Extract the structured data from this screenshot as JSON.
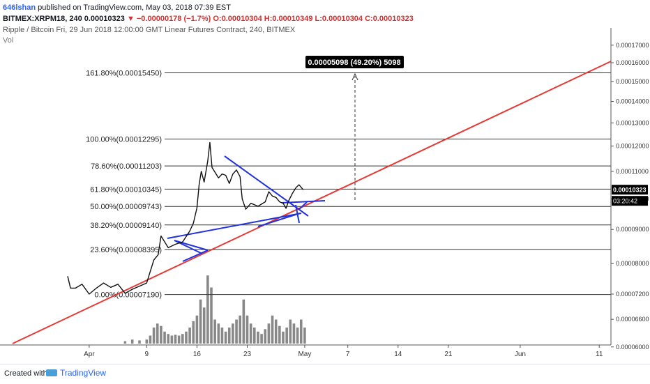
{
  "header": {
    "author": "646lshan",
    "published_text": "published on TradingView.com, May 03, 2018 07:39 EST",
    "symbol_line": "BITMEX:XRPM18, 240 0.00010323",
    "change_text": "▼ −0.00000178 (−1.7%)",
    "ohlc_text": "O:0.00010304 H:0.00010349 L:0.00010304 C:0.00010323",
    "title": "Ripple / Bitcoin Fri, 29 Jun 2018 12:00:00 GMT Linear Futures Contract, 240, BITMEX",
    "vol_label": "Vol"
  },
  "footer": {
    "created_with": "Created with",
    "brand": "TradingView"
  },
  "colors": {
    "trendline": "#e53935",
    "pattern": "#2233dd",
    "fib": "#333333",
    "price_tag": "#000000",
    "volume": "#888888"
  },
  "chart_data": {
    "type": "line",
    "scale": "log",
    "x_ticks": [
      "Apr",
      "9",
      "16",
      "23",
      "May",
      "7",
      "14",
      "21",
      "Jun",
      "11"
    ],
    "y_ticks": [
      "0.00017000",
      "0.00016000",
      "0.00015000",
      "0.00014000",
      "0.00013000",
      "0.00012000",
      "0.00011000",
      "0.00010000",
      "0.00009000",
      "0.00008000",
      "0.00007200",
      "0.00006600",
      "0.00006000"
    ],
    "last_price": "0.00010323",
    "countdown": "03:20:42",
    "fib_levels": [
      {
        "label": "161.80%(0.00015450)",
        "price": 0.0001545
      },
      {
        "label": "100.00%(0.00012295)",
        "price": 0.00012295
      },
      {
        "label": "78.60%(0.00011203)",
        "price": 0.00011203
      },
      {
        "label": "61.80%(0.00010345)",
        "price": 0.00010345
      },
      {
        "label": "50.00%(0.00009743)",
        "price": 9.743e-05
      },
      {
        "label": "38.20%(0.00009140)",
        "price": 9.14e-05
      },
      {
        "label": "23.60%(0.00008395)",
        "price": 8.395e-05
      },
      {
        "label": "0.00%(0.00007190)",
        "price": 7.19e-05
      }
    ],
    "measure_label": "0.00005098 (49.20%) 5098",
    "price_series": [
      {
        "day": 0,
        "price": 7.66e-05
      },
      {
        "day": 0.4,
        "price": 7.35e-05
      },
      {
        "day": 1.1,
        "price": 7.35e-05
      },
      {
        "day": 2.0,
        "price": 7.45e-05
      },
      {
        "day": 3.0,
        "price": 7.2e-05
      },
      {
        "day": 4.0,
        "price": 7.35e-05
      },
      {
        "day": 5.0,
        "price": 7.48e-05
      },
      {
        "day": 6.0,
        "price": 7.37e-05
      },
      {
        "day": 7.0,
        "price": 7.45e-05
      },
      {
        "day": 8.0,
        "price": 7.22e-05
      },
      {
        "day": 9.0,
        "price": 7.32e-05
      },
      {
        "day": 10.0,
        "price": 7.4e-05
      },
      {
        "day": 11.0,
        "price": 7.48e-05
      },
      {
        "day": 11.6,
        "price": 7.85e-05
      },
      {
        "day": 12.0,
        "price": 8.1e-05
      },
      {
        "day": 12.6,
        "price": 8.25e-05
      },
      {
        "day": 13.0,
        "price": 8.8e-05
      },
      {
        "day": 14.0,
        "price": 8.45e-05
      },
      {
        "day": 15.0,
        "price": 8.55e-05
      },
      {
        "day": 16.0,
        "price": 8.62e-05
      },
      {
        "day": 17.0,
        "price": 8.95e-05
      },
      {
        "day": 17.5,
        "price": 9.2e-05
      },
      {
        "day": 18.0,
        "price": 9.7e-05
      },
      {
        "day": 18.3,
        "price": 0.000105
      },
      {
        "day": 18.6,
        "price": 0.00011
      },
      {
        "day": 19.0,
        "price": 0.000106
      },
      {
        "day": 19.5,
        "price": 0.000114
      },
      {
        "day": 19.8,
        "price": 0.0001215
      },
      {
        "day": 20.1,
        "price": 0.0001115
      },
      {
        "day": 21.0,
        "price": 0.0001075
      },
      {
        "day": 21.5,
        "price": 0.000109
      },
      {
        "day": 22.0,
        "price": 0.0001085
      },
      {
        "day": 22.5,
        "price": 0.0001055
      },
      {
        "day": 23.0,
        "price": 0.000109
      },
      {
        "day": 23.5,
        "price": 0.0001105
      },
      {
        "day": 24.0,
        "price": 0.000108
      },
      {
        "day": 24.3,
        "price": 0.0001
      },
      {
        "day": 24.8,
        "price": 9.65e-05
      },
      {
        "day": 25.5,
        "price": 9.85e-05
      },
      {
        "day": 26.5,
        "price": 9.75e-05
      },
      {
        "day": 27.5,
        "price": 9.9e-05
      },
      {
        "day": 28.0,
        "price": 0.0001025
      },
      {
        "day": 28.5,
        "price": 0.000101
      },
      {
        "day": 29.0,
        "price": 0.0001005
      },
      {
        "day": 29.5,
        "price": 9.9e-05
      },
      {
        "day": 30.0,
        "price": 9.85e-05
      },
      {
        "day": 30.4,
        "price": 9.68e-05
      },
      {
        "day": 30.8,
        "price": 9.95e-05
      },
      {
        "day": 31.3,
        "price": 0.000102
      },
      {
        "day": 31.8,
        "price": 0.000104
      },
      {
        "day": 32.2,
        "price": 0.000105
      },
      {
        "day": 32.8,
        "price": 0.0001032
      }
    ],
    "volume": [
      {
        "day": 8,
        "v": 0.03
      },
      {
        "day": 9,
        "v": 0.05
      },
      {
        "day": 10,
        "v": 0.04
      },
      {
        "day": 11,
        "v": 0.05
      },
      {
        "day": 11.5,
        "v": 0.1
      },
      {
        "day": 12,
        "v": 0.2
      },
      {
        "day": 12.5,
        "v": 0.25
      },
      {
        "day": 13,
        "v": 0.22
      },
      {
        "day": 13.5,
        "v": 0.15
      },
      {
        "day": 14,
        "v": 0.12
      },
      {
        "day": 14.5,
        "v": 0.1
      },
      {
        "day": 15,
        "v": 0.11
      },
      {
        "day": 15.5,
        "v": 0.1
      },
      {
        "day": 16,
        "v": 0.12
      },
      {
        "day": 16.5,
        "v": 0.15
      },
      {
        "day": 17,
        "v": 0.2
      },
      {
        "day": 17.5,
        "v": 0.28
      },
      {
        "day": 18,
        "v": 0.35
      },
      {
        "day": 18.5,
        "v": 0.55
      },
      {
        "day": 19,
        "v": 0.45
      },
      {
        "day": 19.5,
        "v": 0.85
      },
      {
        "day": 20,
        "v": 0.7
      },
      {
        "day": 20.5,
        "v": 0.3
      },
      {
        "day": 21,
        "v": 0.25
      },
      {
        "day": 21.5,
        "v": 0.2
      },
      {
        "day": 22,
        "v": 0.15
      },
      {
        "day": 22.5,
        "v": 0.2
      },
      {
        "day": 23,
        "v": 0.25
      },
      {
        "day": 23.5,
        "v": 0.3
      },
      {
        "day": 24,
        "v": 0.35
      },
      {
        "day": 24.5,
        "v": 0.55
      },
      {
        "day": 25,
        "v": 0.35
      },
      {
        "day": 25.5,
        "v": 0.25
      },
      {
        "day": 26,
        "v": 0.2
      },
      {
        "day": 26.5,
        "v": 0.15
      },
      {
        "day": 27,
        "v": 0.12
      },
      {
        "day": 27.5,
        "v": 0.18
      },
      {
        "day": 28,
        "v": 0.25
      },
      {
        "day": 28.5,
        "v": 0.35
      },
      {
        "day": 29,
        "v": 0.3
      },
      {
        "day": 29.5,
        "v": 0.22
      },
      {
        "day": 30,
        "v": 0.15
      },
      {
        "day": 30.5,
        "v": 0.2
      },
      {
        "day": 31,
        "v": 0.3
      },
      {
        "day": 31.5,
        "v": 0.25
      },
      {
        "day": 32,
        "v": 0.2
      },
      {
        "day": 32.5,
        "v": 0.3
      },
      {
        "day": 33,
        "v": 0.2
      }
    ]
  }
}
